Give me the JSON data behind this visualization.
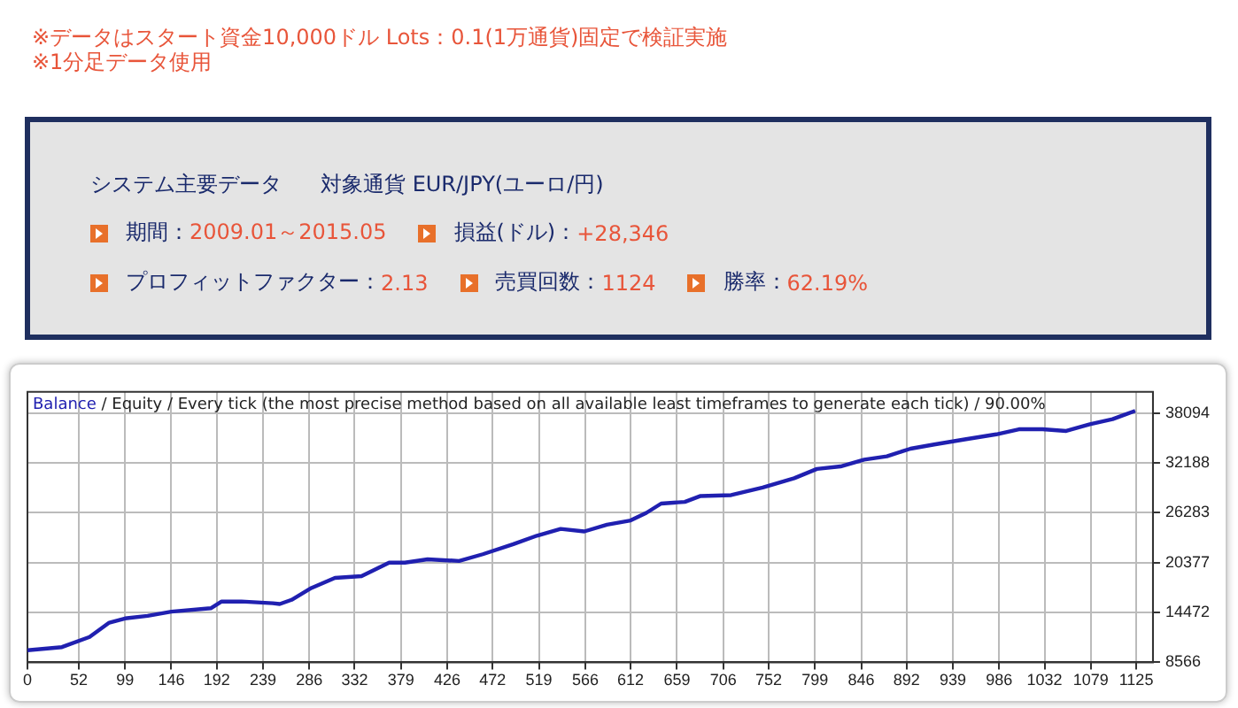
{
  "chart_data": {
    "type": "line",
    "annotations": [
      "※データはスタート資金10,000ドル Lots：0.1(1万通貨)固定で検証実施",
      "※1分足データ使用",
      "システム主要データ",
      "対象通貨 EUR/JPY(ユーロ/円)",
      "期間：",
      "2009.01～2015.05",
      "損益(ドル)：",
      "+28,346",
      "プロフィットファクター：",
      "2.13",
      "売買回数：",
      "1124",
      "勝率：",
      "62.19%",
      " / Equity / Every tick (the most precise method based on all available least timeframes to generate each tick) / 90.00%"
    ],
    "x": [
      0,
      35,
      63,
      83,
      99,
      122,
      146,
      186,
      197,
      217,
      249,
      256,
      268,
      288,
      312,
      339,
      367,
      383,
      406,
      438,
      462,
      493,
      517,
      541,
      565,
      588,
      612,
      628,
      643,
      667,
      683,
      714,
      746,
      778,
      801,
      825,
      849,
      872,
      896,
      920,
      951,
      983,
      1006,
      1030,
      1054,
      1078,
      1101,
      1124
    ],
    "series": [
      {
        "name": "Balance",
        "color": "#2020b0",
        "values": [
          10000,
          10370,
          11570,
          13270,
          13770,
          14070,
          14570,
          14970,
          15770,
          15770,
          15570,
          15470,
          15970,
          17370,
          18570,
          18770,
          20370,
          20370,
          20770,
          20570,
          21370,
          22570,
          23570,
          24370,
          24070,
          24870,
          25370,
          26270,
          27370,
          27570,
          28270,
          28370,
          29270,
          30370,
          31470,
          31770,
          32570,
          32970,
          33870,
          34370,
          34970,
          35570,
          36170,
          36170,
          35970,
          36770,
          37370,
          38346
        ]
      }
    ],
    "xlim": [
      0,
      1142
    ],
    "xticks": [
      0,
      52,
      99,
      146,
      192,
      239,
      286,
      332,
      379,
      426,
      472,
      519,
      566,
      612,
      659,
      706,
      752,
      799,
      846,
      892,
      939,
      986,
      1032,
      1079,
      1125
    ],
    "ylim": [
      8566,
      40600
    ],
    "yticks": [
      8566,
      14472,
      20377,
      26283,
      32188,
      38094
    ],
    "grid": true,
    "legend": "top left",
    "marker": "none",
    "line_style": "solid"
  }
}
